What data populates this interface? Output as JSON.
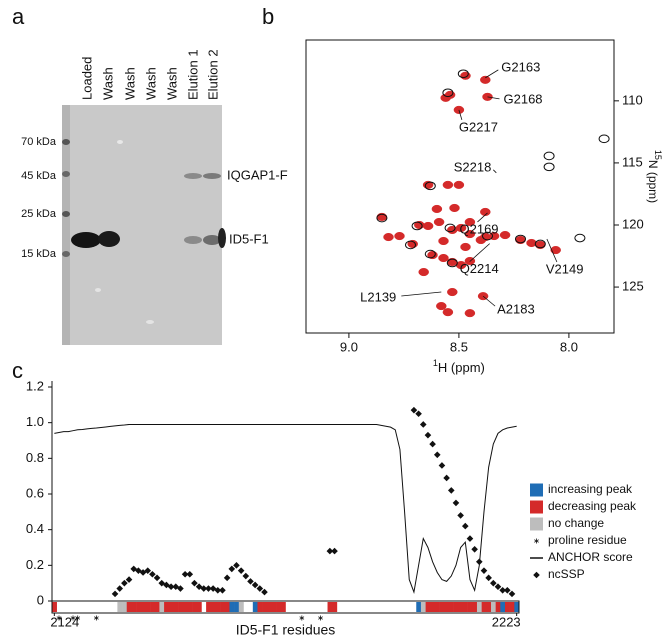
{
  "panel_labels": [
    "a",
    "b",
    "c"
  ],
  "gel": {
    "lanes": [
      "Loaded",
      "Wash",
      "Wash",
      "Wash",
      "Wash",
      "Elution 1",
      "Elution 2"
    ],
    "markers": [
      "70 kDa",
      "45 kDa",
      "25 kDa",
      "15 kDa"
    ],
    "band_labels": [
      "IQGAP1-F",
      "ID5-F1"
    ]
  },
  "chart_data": [
    {
      "type": "scatter",
      "xlabel_isotope": "1",
      "xlabel": "H (ppm)",
      "ylabel_isotope": "15",
      "ylabel": "N (ppm)",
      "xlim": [
        9.195,
        7.795
      ],
      "ylim": [
        128.7,
        105.1
      ],
      "xticks": [
        {
          "value": 9,
          "label": "9.0"
        },
        8.5,
        {
          "value": 8,
          "label": "8.0"
        }
      ],
      "yticks": [
        110,
        115,
        120,
        125
      ],
      "series": [
        {
          "color": "#d42a2a",
          "fill": true,
          "x": [
            8.47,
            8.38,
            8.54,
            8.56,
            8.37,
            8.5,
            8.64,
            8.55,
            8.5,
            8.68,
            8.64,
            8.59,
            8.53,
            8.49,
            8.45,
            8.38,
            8.34,
            8.29,
            8.22,
            8.17,
            8.13,
            8.06,
            8.4,
            8.57,
            8.47,
            8.62,
            8.57,
            8.53,
            8.49,
            8.45,
            8.66,
            8.53,
            8.39,
            8.58,
            8.55,
            8.45,
            8.85,
            8.82,
            8.77,
            8.71,
            8.6,
            8.52,
            8.45,
            8.38
          ],
          "values": [
            107.98,
            108.31,
            109.52,
            109.76,
            109.68,
            110.73,
            116.77,
            116.77,
            116.77,
            120.0,
            120.08,
            119.76,
            120.4,
            120.24,
            120.73,
            120.97,
            120.89,
            120.81,
            121.21,
            121.45,
            121.61,
            122.02,
            121.21,
            121.29,
            121.77,
            122.42,
            122.66,
            122.98,
            123.23,
            122.9,
            123.79,
            125.4,
            125.73,
            126.53,
            127.02,
            127.1,
            119.35,
            120.97,
            120.89,
            121.53,
            118.71,
            118.63,
            119.76,
            118.95
          ]
        },
        {
          "color": "#111111",
          "fill": false,
          "x": [
            8.48,
            8.55,
            7.84,
            8.09,
            8.09,
            8.63,
            8.85,
            8.69,
            8.54,
            8.37,
            8.22,
            7.95,
            8.63,
            8.53,
            8.72,
            8.13
          ],
          "values": [
            107.82,
            109.35,
            113.06,
            114.44,
            115.32,
            116.85,
            119.44,
            120.08,
            120.24,
            120.89,
            121.13,
            121.05,
            122.34,
            123.06,
            121.61,
            121.53
          ]
        }
      ],
      "annotations": [
        {
          "text": "G2163",
          "x": 8.38,
          "y": 108.15
        },
        {
          "text": "G2168",
          "x": 8.37,
          "y": 109.68
        },
        {
          "text": "G2217",
          "x": 8.5,
          "y": 110.73
        },
        {
          "text": "S2218",
          "x": 8.33,
          "y": 115.8
        },
        {
          "text": "Q2169",
          "x": 8.37,
          "y": 119.03
        },
        {
          "text": "Q2214",
          "x": 8.36,
          "y": 121.5
        },
        {
          "text": "V2149",
          "x": 8.1,
          "y": 121.13
        },
        {
          "text": "L2139",
          "x": 8.58,
          "y": 125.4
        },
        {
          "text": "A2183",
          "x": 8.39,
          "y": 125.73
        }
      ]
    },
    {
      "type": "line",
      "xlabel": "ID5-F1 residues",
      "xlim": [
        2123.5,
        2223.5
      ],
      "xticks": [
        2124,
        2223
      ],
      "ylim": [
        0,
        1.2
      ],
      "yticks": [
        0,
        0.2,
        0.4,
        0.6,
        0.8,
        {
          "value": 1,
          "label": "1.0"
        },
        1.2
      ],
      "x": [
        2124,
        2125,
        2126,
        2127,
        2128,
        2129,
        2130,
        2131,
        2132,
        2133,
        2134,
        2135,
        2136,
        2137,
        2138,
        2139,
        2140,
        2141,
        2142,
        2143,
        2144,
        2145,
        2146,
        2147,
        2148,
        2149,
        2150,
        2151,
        2152,
        2153,
        2154,
        2155,
        2156,
        2157,
        2158,
        2159,
        2160,
        2161,
        2162,
        2163,
        2164,
        2165,
        2166,
        2167,
        2168,
        2169,
        2170,
        2171,
        2172,
        2173,
        2174,
        2175,
        2176,
        2177,
        2178,
        2179,
        2180,
        2181,
        2182,
        2183,
        2184,
        2185,
        2186,
        2187,
        2188,
        2189,
        2190,
        2191,
        2192,
        2193,
        2194,
        2195,
        2196,
        2197,
        2198,
        2199,
        2200,
        2201,
        2202,
        2203,
        2204,
        2205,
        2206,
        2207,
        2208,
        2209,
        2210,
        2211,
        2212,
        2213,
        2214,
        2215,
        2216,
        2217,
        2218,
        2219,
        2220,
        2221,
        2222,
        2223
      ],
      "series": [
        {
          "name": "ANCHOR score",
          "color": "#111111",
          "marker": "line",
          "values": [
            0.94,
            0.945,
            0.95,
            0.95,
            0.955,
            0.96,
            0.962,
            0.965,
            0.968,
            0.97,
            0.973,
            0.976,
            0.979,
            0.982,
            0.985,
            0.987,
            0.99,
            0.99,
            0.99,
            0.99,
            0.99,
            0.99,
            0.99,
            0.99,
            0.99,
            0.99,
            0.99,
            0.99,
            0.99,
            0.99,
            0.99,
            0.99,
            0.99,
            0.99,
            0.99,
            0.99,
            0.99,
            0.99,
            0.99,
            0.99,
            0.99,
            0.99,
            0.99,
            0.99,
            0.99,
            0.99,
            0.99,
            0.99,
            0.99,
            0.99,
            0.99,
            0.99,
            0.99,
            0.99,
            0.99,
            0.99,
            0.99,
            0.99,
            0.99,
            0.99,
            0.99,
            0.99,
            0.99,
            0.99,
            0.99,
            0.99,
            0.99,
            0.99,
            0.99,
            0.99,
            0.985,
            0.98,
            0.975,
            0.96,
            0.85,
            0.5,
            0.12,
            0.05,
            0.2,
            0.35,
            0.3,
            0.22,
            0.16,
            0.12,
            0.11,
            0.14,
            0.2,
            0.3,
            0.33,
            0.12,
            0.06,
            0.2,
            0.5,
            0.75,
            0.88,
            0.94,
            0.96,
            0.97,
            0.975,
            0.98
          ]
        },
        {
          "name": "ncSSP",
          "color": "#111111",
          "marker": "diamond",
          "values": [
            null,
            null,
            null,
            null,
            null,
            null,
            null,
            null,
            null,
            null,
            null,
            null,
            null,
            0.04,
            0.07,
            0.1,
            0.12,
            0.18,
            0.17,
            0.16,
            0.17,
            0.15,
            0.13,
            0.1,
            0.09,
            0.08,
            0.08,
            0.07,
            0.15,
            0.15,
            0.1,
            0.08,
            0.07,
            0.07,
            0.07,
            0.06,
            0.06,
            0.13,
            0.18,
            0.2,
            0.17,
            0.14,
            0.11,
            0.09,
            0.07,
            0.05,
            null,
            null,
            null,
            null,
            null,
            null,
            null,
            null,
            null,
            null,
            null,
            null,
            null,
            0.28,
            0.28,
            null,
            null,
            null,
            null,
            null,
            null,
            null,
            null,
            null,
            null,
            null,
            null,
            null,
            null,
            null,
            null,
            1.07,
            1.05,
            0.99,
            0.93,
            0.88,
            0.82,
            0.76,
            0.69,
            0.62,
            0.55,
            0.48,
            0.42,
            0.35,
            0.29,
            0.22,
            0.17,
            0.13,
            0.1,
            0.08,
            0.06,
            0.06,
            0.04,
            null
          ]
        }
      ],
      "residue_states": [
        {
          "name": "increasing peak",
          "color": "#1f6db5"
        },
        {
          "name": "decreasing peak",
          "color": "#d42a2a"
        },
        {
          "name": "no change",
          "color": "#bdbdbd"
        }
      ],
      "residue_change": [
        1,
        null,
        null,
        null,
        null,
        null,
        null,
        null,
        null,
        null,
        null,
        null,
        null,
        null,
        2,
        2,
        1,
        1,
        1,
        1,
        1,
        1,
        1,
        2,
        1,
        1,
        1,
        1,
        1,
        1,
        1,
        1,
        null,
        1,
        1,
        1,
        1,
        1,
        0,
        0,
        2,
        null,
        null,
        0,
        1,
        1,
        1,
        1,
        1,
        1,
        null,
        null,
        null,
        null,
        null,
        null,
        null,
        null,
        null,
        1,
        1,
        null,
        null,
        null,
        null,
        null,
        null,
        null,
        null,
        null,
        null,
        null,
        null,
        null,
        null,
        null,
        null,
        null,
        0,
        2,
        1,
        1,
        1,
        1,
        1,
        1,
        1,
        1,
        1,
        1,
        1,
        2,
        1,
        1,
        2,
        1,
        0,
        1,
        1,
        0
      ],
      "proline_label": "proline residue",
      "proline_residues": [
        2125,
        2128,
        2129,
        2133,
        2177,
        2181
      ]
    }
  ]
}
